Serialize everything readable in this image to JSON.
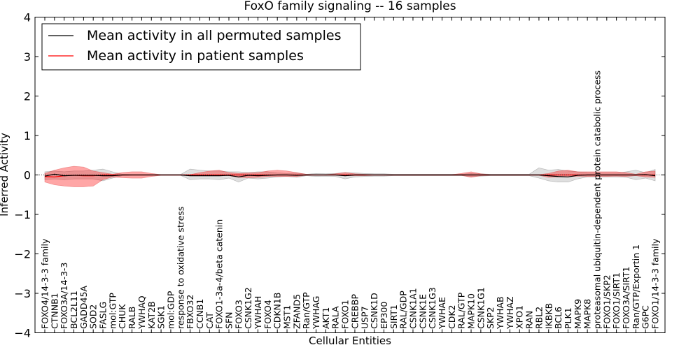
{
  "chart_data": {
    "type": "line",
    "title": "FoxO family signaling -- 16 samples",
    "xlabel": "Cellular Entities",
    "ylabel": "Inferred Activity",
    "ylim": [
      -4,
      4
    ],
    "yticks": [
      -4,
      -3,
      -2,
      -1,
      0,
      1,
      2,
      3,
      4
    ],
    "ytick_labels": [
      "−4",
      "−3",
      "−2",
      "−1",
      "0",
      "1",
      "2",
      "3",
      "4"
    ],
    "legend_position": "top-left",
    "categories": [
      "FOXO4/14-3-3 family",
      "CTNNB1",
      "FOXO3A/14-3-3",
      "BCL2L11",
      "GADD45A",
      "SOD2",
      "FASLG",
      "mol:GTP",
      "CHUK",
      "RALB",
      "YWHAQ",
      "KAT2B",
      "SGK1",
      "mol:GDP",
      "response to oxidative stress",
      "FBXO32",
      "CCNB1",
      "CAT",
      "FOXO1-3a-4/beta catenin",
      "SFN",
      "FOXO3",
      "CSNK1G2",
      "YWHAH",
      "FOXO4",
      "CDKN1B",
      "MST1",
      "ZFAND5",
      "Ran/GTP",
      "YWHAG",
      "AKT1",
      "RALA",
      "FOXO1",
      "CREBBP",
      "USP7",
      "CSNK1D",
      "EP300",
      "SIRT1",
      "RAL/GDP",
      "CSNK1A1",
      "CSNK1E",
      "CSNK1G3",
      "YWHAE",
      "CDK2",
      "RAL/GTP",
      "MAPK10",
      "CSNK1G1",
      "SKP2",
      "YWHAB",
      "YWHAZ",
      "XPO1",
      "RAN",
      "RBL2",
      "IKBKB",
      "BCL6",
      "PLK1",
      "MAPK9",
      "MAPK8",
      "proteasomal ubiquitin-dependent protein catabolic process",
      "FOXO1/SKP2",
      "FOXO1/SIRT1",
      "FOXO3A/SIRT1",
      "Ran/GTP/Exportin 1",
      "G6PC",
      "FOXO1/14-3-3 family"
    ],
    "series": [
      {
        "name": "Mean activity in all permuted samples",
        "color": "#000000",
        "values": [
          -0.03,
          0.02,
          -0.02,
          -0.01,
          -0.01,
          -0.01,
          -0.02,
          -0.02,
          0.0,
          0.0,
          0.0,
          0.0,
          0.0,
          0.0,
          0.0,
          -0.02,
          -0.02,
          -0.02,
          -0.02,
          -0.01,
          -0.05,
          -0.01,
          -0.02,
          -0.01,
          0.0,
          0.0,
          -0.01,
          0.0,
          0.0,
          0.0,
          0.0,
          -0.02,
          0.0,
          0.0,
          0.0,
          0.0,
          0.0,
          0.0,
          0.0,
          0.0,
          0.0,
          0.0,
          0.0,
          0.0,
          0.0,
          0.0,
          0.0,
          0.0,
          0.0,
          0.0,
          0.0,
          0.0,
          -0.02,
          -0.04,
          -0.05,
          -0.01,
          0.0,
          0.0,
          0.0,
          0.0,
          0.0,
          0.0,
          0.01,
          -0.02
        ],
        "band_low": [
          -0.12,
          -0.1,
          -0.12,
          -0.1,
          -0.1,
          -0.1,
          -0.15,
          -0.08,
          -0.02,
          -0.01,
          -0.01,
          -0.01,
          -0.01,
          -0.01,
          -0.01,
          -0.12,
          -0.1,
          -0.1,
          -0.12,
          -0.08,
          -0.18,
          -0.08,
          -0.1,
          -0.08,
          -0.05,
          -0.04,
          -0.06,
          -0.02,
          -0.04,
          -0.03,
          -0.04,
          -0.1,
          -0.05,
          -0.04,
          -0.03,
          -0.03,
          -0.02,
          -0.02,
          -0.02,
          -0.02,
          -0.02,
          -0.02,
          -0.02,
          -0.02,
          -0.04,
          -0.03,
          -0.02,
          -0.02,
          -0.02,
          -0.02,
          -0.02,
          -0.08,
          -0.15,
          -0.18,
          -0.18,
          -0.1,
          -0.05,
          -0.05,
          -0.05,
          -0.05,
          -0.06,
          -0.12,
          -0.08,
          -0.15
        ],
        "band_high": [
          0.08,
          0.1,
          0.08,
          0.1,
          0.1,
          0.12,
          0.15,
          0.08,
          0.02,
          0.01,
          0.01,
          0.01,
          0.01,
          0.01,
          0.01,
          0.15,
          0.12,
          0.1,
          0.1,
          0.08,
          0.08,
          0.06,
          0.08,
          0.08,
          0.05,
          0.04,
          0.05,
          0.02,
          0.04,
          0.03,
          0.04,
          0.06,
          0.05,
          0.04,
          0.03,
          0.03,
          0.02,
          0.02,
          0.02,
          0.02,
          0.02,
          0.02,
          0.02,
          0.02,
          0.04,
          0.03,
          0.02,
          0.02,
          0.02,
          0.02,
          0.02,
          0.18,
          0.12,
          0.14,
          0.1,
          0.08,
          0.06,
          0.05,
          0.05,
          0.05,
          0.08,
          0.12,
          0.06,
          0.14
        ]
      },
      {
        "name": "Mean activity in patient samples",
        "color": "#ff0000",
        "values": [
          -0.04,
          -0.05,
          -0.02,
          -0.01,
          -0.02,
          -0.02,
          0.0,
          0.0,
          0.0,
          0.0,
          0.0,
          0.0,
          0.0,
          0.0,
          0.0,
          0.0,
          0.0,
          0.0,
          0.0,
          0.0,
          0.0,
          0.0,
          0.0,
          0.0,
          0.0,
          0.0,
          0.0,
          0.0,
          0.0,
          0.0,
          0.0,
          0.0,
          0.0,
          0.0,
          0.0,
          0.0,
          0.0,
          0.0,
          0.0,
          0.0,
          0.0,
          0.0,
          0.0,
          0.0,
          0.0,
          0.0,
          0.0,
          0.0,
          0.0,
          0.0,
          0.0,
          0.0,
          0.0,
          0.0,
          0.0,
          0.0,
          0.0,
          0.0,
          0.0,
          0.0,
          0.0,
          0.0,
          0.0,
          0.0
        ],
        "band_low": [
          -0.18,
          -0.25,
          -0.28,
          -0.3,
          -0.3,
          -0.28,
          -0.12,
          -0.05,
          -0.07,
          -0.08,
          -0.08,
          -0.04,
          -0.01,
          -0.01,
          -0.01,
          -0.01,
          -0.01,
          -0.01,
          -0.01,
          -0.02,
          -0.06,
          -0.07,
          -0.06,
          -0.04,
          -0.04,
          -0.04,
          -0.04,
          -0.01,
          -0.01,
          -0.01,
          -0.01,
          -0.02,
          -0.02,
          -0.02,
          -0.01,
          -0.01,
          -0.01,
          -0.01,
          -0.01,
          -0.01,
          -0.01,
          -0.01,
          -0.01,
          -0.01,
          -0.06,
          -0.02,
          -0.01,
          -0.01,
          -0.01,
          -0.01,
          -0.01,
          -0.01,
          -0.06,
          -0.05,
          -0.05,
          -0.03,
          -0.04,
          -0.04,
          -0.04,
          -0.03,
          -0.04,
          -0.02,
          -0.05,
          -0.06
        ],
        "band_high": [
          0.04,
          0.12,
          0.18,
          0.22,
          0.2,
          0.1,
          0.06,
          0.02,
          0.06,
          0.08,
          0.08,
          0.04,
          0.01,
          0.01,
          0.01,
          0.01,
          0.06,
          0.1,
          0.12,
          0.06,
          0.04,
          0.05,
          0.06,
          0.1,
          0.12,
          0.1,
          0.06,
          0.02,
          0.01,
          0.01,
          0.03,
          0.06,
          0.03,
          0.02,
          0.01,
          0.01,
          0.01,
          0.01,
          0.01,
          0.01,
          0.01,
          0.01,
          0.01,
          0.04,
          0.08,
          0.03,
          0.01,
          0.01,
          0.01,
          0.01,
          0.01,
          0.01,
          0.04,
          0.1,
          0.12,
          0.08,
          0.08,
          0.08,
          0.08,
          0.08,
          0.06,
          0.02,
          0.08,
          0.1
        ]
      }
    ]
  }
}
